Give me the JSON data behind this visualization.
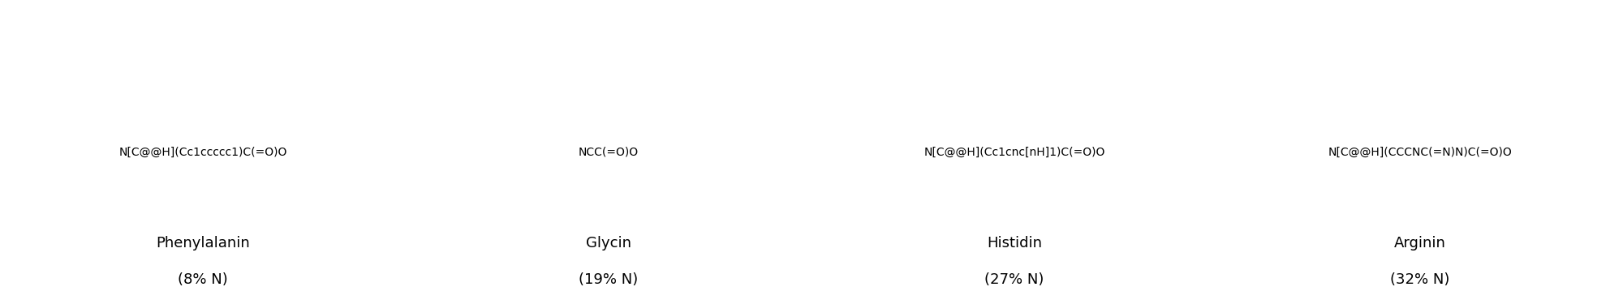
{
  "molecules": [
    {
      "name": "Phenylalanin",
      "percent": "(8% N)",
      "smiles": "N[C@@H](Cc1ccccc1)C(=O)O"
    },
    {
      "name": "Glycin",
      "percent": "(19% N)",
      "smiles": "NCC(=O)O"
    },
    {
      "name": "Histidin",
      "percent": "(27% N)",
      "smiles": "N[C@@H](Cc1cnc[nH]1)C(=O)O"
    },
    {
      "name": "Arginin",
      "percent": "(32% N)",
      "smiles": "N[C@@H](CCCNC(=N)N)C(=O)O"
    }
  ],
  "background_color": "#ffffff",
  "text_color": "#000000",
  "name_fontsize": 13,
  "percent_fontsize": 13,
  "fig_width": 20.0,
  "fig_height": 3.75,
  "dpi": 100
}
